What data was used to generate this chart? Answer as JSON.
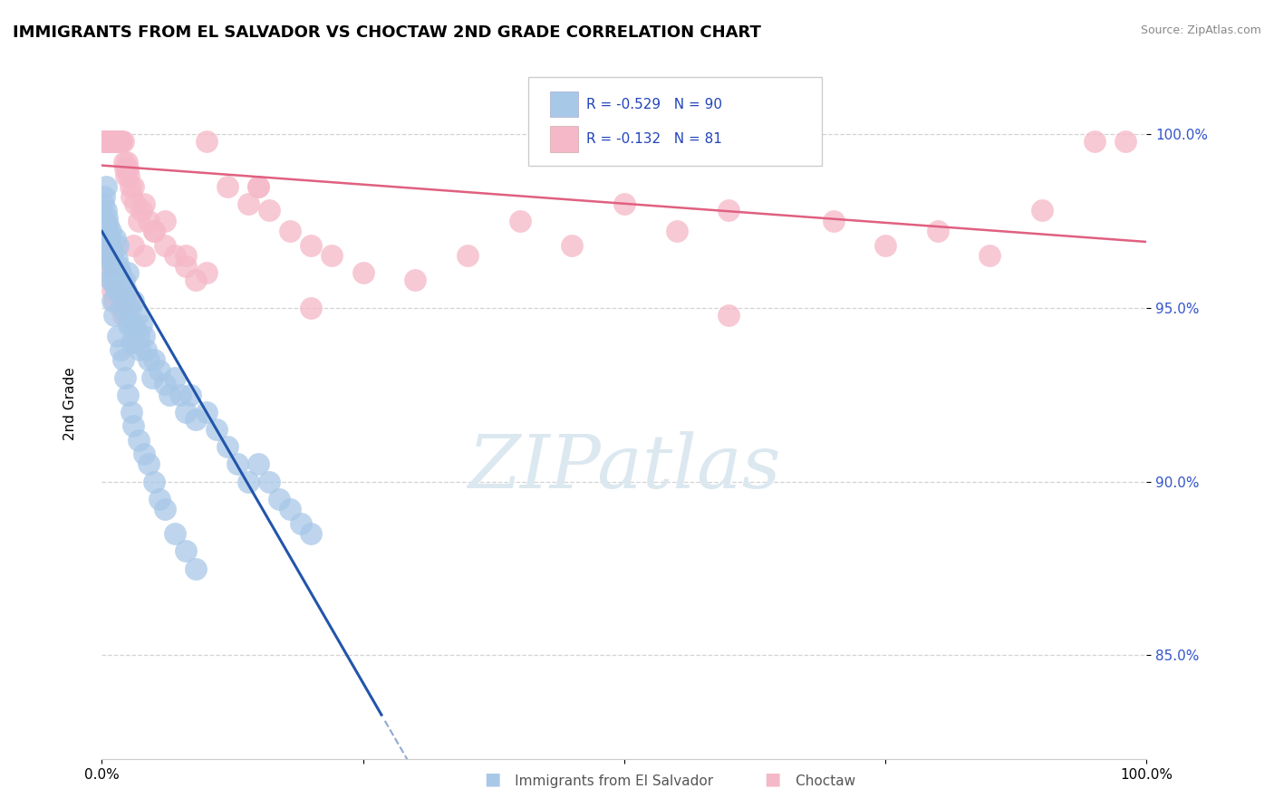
{
  "title": "IMMIGRANTS FROM EL SALVADOR VS CHOCTAW 2ND GRADE CORRELATION CHART",
  "source": "Source: ZipAtlas.com",
  "ylabel": "2nd Grade",
  "yticks": [
    0.85,
    0.9,
    0.95,
    1.0
  ],
  "ytick_labels": [
    "85.0%",
    "90.0%",
    "95.0%",
    "100.0%"
  ],
  "legend_blue_r": "-0.529",
  "legend_blue_n": "90",
  "legend_pink_r": "-0.132",
  "legend_pink_n": "81",
  "blue_color": "#a8c8e8",
  "pink_color": "#f5b8c8",
  "blue_line_color": "#2255aa",
  "pink_line_color": "#e06080",
  "dashed_line_color": "#c8c8c8",
  "watermark_color": "#dce8f0",
  "watermark_fontsize": 60,
  "title_fontsize": 13,
  "xlim": [
    0.0,
    1.0
  ],
  "ylim": [
    0.82,
    1.02
  ],
  "blue_line_x_start": 0.0,
  "blue_line_x_solid_end": 0.27,
  "blue_line_y_at_0": 0.972,
  "blue_line_slope": -0.52,
  "pink_line_y_at_0": 0.991,
  "pink_line_slope": -0.022,
  "blue_points_x": [
    0.001,
    0.002,
    0.003,
    0.004,
    0.004,
    0.005,
    0.005,
    0.006,
    0.006,
    0.007,
    0.007,
    0.008,
    0.008,
    0.009,
    0.009,
    0.01,
    0.01,
    0.011,
    0.012,
    0.013,
    0.013,
    0.014,
    0.015,
    0.015,
    0.016,
    0.017,
    0.018,
    0.018,
    0.019,
    0.02,
    0.021,
    0.022,
    0.023,
    0.024,
    0.025,
    0.026,
    0.027,
    0.028,
    0.029,
    0.03,
    0.031,
    0.032,
    0.034,
    0.035,
    0.036,
    0.038,
    0.04,
    0.042,
    0.045,
    0.048,
    0.05,
    0.055,
    0.06,
    0.065,
    0.07,
    0.075,
    0.08,
    0.085,
    0.09,
    0.1,
    0.11,
    0.12,
    0.13,
    0.14,
    0.15,
    0.16,
    0.17,
    0.18,
    0.19,
    0.2,
    0.005,
    0.008,
    0.01,
    0.012,
    0.015,
    0.018,
    0.02,
    0.022,
    0.025,
    0.028,
    0.03,
    0.035,
    0.04,
    0.045,
    0.05,
    0.055,
    0.06,
    0.07,
    0.08,
    0.09
  ],
  "blue_points_y": [
    0.98,
    0.982,
    0.975,
    0.978,
    0.985,
    0.972,
    0.976,
    0.968,
    0.974,
    0.97,
    0.965,
    0.968,
    0.972,
    0.963,
    0.967,
    0.96,
    0.966,
    0.958,
    0.962,
    0.956,
    0.97,
    0.964,
    0.968,
    0.955,
    0.962,
    0.958,
    0.954,
    0.96,
    0.955,
    0.95,
    0.958,
    0.952,
    0.955,
    0.948,
    0.96,
    0.945,
    0.95,
    0.94,
    0.945,
    0.952,
    0.945,
    0.94,
    0.948,
    0.942,
    0.938,
    0.945,
    0.942,
    0.938,
    0.935,
    0.93,
    0.935,
    0.932,
    0.928,
    0.925,
    0.93,
    0.925,
    0.92,
    0.925,
    0.918,
    0.92,
    0.915,
    0.91,
    0.905,
    0.9,
    0.905,
    0.9,
    0.895,
    0.892,
    0.888,
    0.885,
    0.965,
    0.958,
    0.952,
    0.948,
    0.942,
    0.938,
    0.935,
    0.93,
    0.925,
    0.92,
    0.916,
    0.912,
    0.908,
    0.905,
    0.9,
    0.895,
    0.892,
    0.885,
    0.88,
    0.875
  ],
  "pink_points_x": [
    0.001,
    0.002,
    0.003,
    0.004,
    0.005,
    0.006,
    0.007,
    0.008,
    0.009,
    0.01,
    0.011,
    0.012,
    0.013,
    0.014,
    0.015,
    0.016,
    0.017,
    0.018,
    0.019,
    0.02,
    0.021,
    0.022,
    0.023,
    0.024,
    0.025,
    0.026,
    0.027,
    0.028,
    0.03,
    0.032,
    0.035,
    0.038,
    0.04,
    0.045,
    0.05,
    0.06,
    0.07,
    0.08,
    0.09,
    0.1,
    0.12,
    0.14,
    0.15,
    0.16,
    0.18,
    0.2,
    0.22,
    0.25,
    0.3,
    0.35,
    0.4,
    0.45,
    0.5,
    0.55,
    0.6,
    0.7,
    0.75,
    0.8,
    0.85,
    0.9,
    0.95,
    0.98,
    0.002,
    0.004,
    0.006,
    0.008,
    0.01,
    0.012,
    0.015,
    0.018,
    0.02,
    0.025,
    0.03,
    0.04,
    0.05,
    0.06,
    0.08,
    0.1,
    0.15,
    0.2,
    0.6
  ],
  "pink_points_y": [
    0.998,
    0.998,
    0.998,
    0.998,
    0.998,
    0.998,
    0.998,
    0.998,
    0.998,
    0.998,
    0.998,
    0.998,
    0.998,
    0.998,
    0.998,
    0.998,
    0.998,
    0.998,
    0.998,
    0.998,
    0.992,
    0.99,
    0.988,
    0.992,
    0.99,
    0.988,
    0.985,
    0.982,
    0.985,
    0.98,
    0.975,
    0.978,
    0.98,
    0.975,
    0.972,
    0.968,
    0.965,
    0.962,
    0.958,
    0.998,
    0.985,
    0.98,
    0.985,
    0.978,
    0.972,
    0.968,
    0.965,
    0.96,
    0.958,
    0.965,
    0.975,
    0.968,
    0.98,
    0.972,
    0.978,
    0.975,
    0.968,
    0.972,
    0.965,
    0.978,
    0.998,
    0.998,
    0.968,
    0.965,
    0.962,
    0.958,
    0.955,
    0.952,
    0.955,
    0.95,
    0.948,
    0.952,
    0.968,
    0.965,
    0.972,
    0.975,
    0.965,
    0.96,
    0.985,
    0.95,
    0.948
  ]
}
